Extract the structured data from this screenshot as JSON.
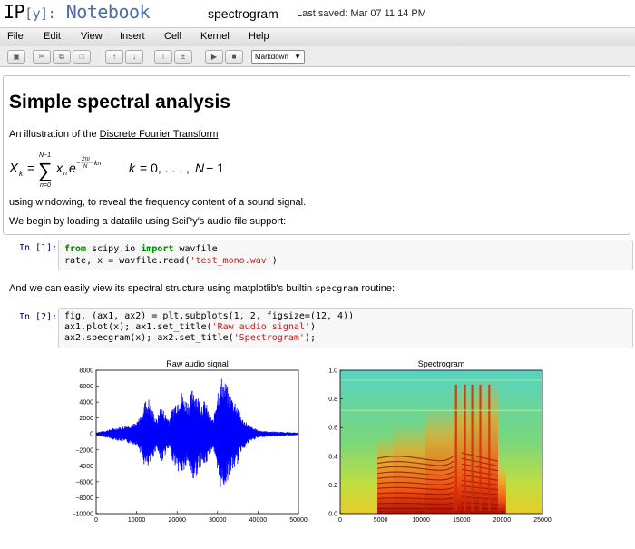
{
  "header": {
    "logo_ip": "IP",
    "logo_y": "[y]:",
    "logo_notebook": "Notebook",
    "notebook_name": "spectrogram",
    "last_saved": "Last saved: Mar 07 11:14 PM"
  },
  "menu": {
    "items": [
      "File",
      "Edit",
      "View",
      "Insert",
      "Cell",
      "Kernel",
      "Help"
    ]
  },
  "toolbar": {
    "buttons": [
      "save-icon",
      "cut-icon",
      "copy-icon",
      "paste-icon",
      "move-up-icon",
      "move-down-icon",
      "insert-above-icon",
      "insert-below-icon",
      "run-icon",
      "stop-icon"
    ],
    "cell_type": "Markdown"
  },
  "markdown": {
    "title": "Simple spectral analysis",
    "intro_prefix": "An illustration of the ",
    "intro_link": "Discrete Fourier Transform",
    "formula": "X_k = sum_{n=0}^{N-1} x_n e^{-2 pi i k n / N}, k = 0, ..., N-1",
    "para2": "using windowing, to reveal the frequency content of a sound signal.",
    "para3": "We begin by loading a datafile using SciPy's audio file support:"
  },
  "cell1": {
    "prompt": "In [1]:",
    "line1_kw1": "from",
    "line1_mod": " scipy.io ",
    "line1_kw2": "import",
    "line1_name": " wavfile",
    "line2_pre": "rate, x = wavfile.read(",
    "line2_str": "'test_mono.wav'",
    "line2_post": ")"
  },
  "between": {
    "prefix": "And we can easily view its spectral structure using matplotlib's builtin ",
    "code": "specgram",
    "suffix": " routine:"
  },
  "cell2": {
    "prompt": "In [2]:",
    "line1": "fig, (ax1, ax2) = plt.subplots(1, 2, figsize=(12, 4))",
    "line2_pre": "ax1.plot(x); ax1.set_title(",
    "line2_str": "'Raw audio signal'",
    "line2_post": ")",
    "line3_pre": "ax2.specgram(x); ax2.set_title(",
    "line3_str": "'Spectrogram'",
    "line3_post": ");"
  },
  "chart_data": [
    {
      "type": "line",
      "title": "Raw audio signal",
      "xlim": [
        0,
        50000
      ],
      "ylim": [
        -10000,
        8000
      ],
      "xticks": [
        "0",
        "10000",
        "20000",
        "30000",
        "40000",
        "50000"
      ],
      "yticks": [
        "8000",
        "6000",
        "4000",
        "2000",
        "0",
        "−2000",
        "−4000",
        "−6000",
        "−8000",
        "−10000"
      ],
      "series_color": "#0000ff",
      "envelope": {
        "x": [
          0,
          2000,
          4000,
          6000,
          8000,
          10000,
          11000,
          12000,
          13000,
          14000,
          15000,
          16000,
          17000,
          18000,
          19000,
          20000,
          21000,
          22000,
          23000,
          24000,
          25000,
          26000,
          27000,
          28000,
          29000,
          30000,
          31000,
          32000,
          33000,
          34000,
          35000,
          36000,
          37000,
          38000,
          40000,
          42000,
          44000,
          46000,
          48000,
          50000
        ],
        "amp": [
          200,
          400,
          700,
          900,
          1200,
          1400,
          2500,
          4200,
          4500,
          3000,
          1800,
          3800,
          2700,
          2000,
          3500,
          4500,
          5500,
          4500,
          4300,
          6200,
          5000,
          4000,
          4300,
          2500,
          1800,
          5800,
          7200,
          6500,
          5200,
          4500,
          3800,
          2000,
          1600,
          1000,
          500,
          350,
          300,
          250,
          200,
          150
        ]
      }
    },
    {
      "type": "heatmap",
      "title": "Spectrogram",
      "xlim": [
        0,
        25000
      ],
      "ylim": [
        0,
        1.0
      ],
      "xticks": [
        "0",
        "5000",
        "10000",
        "15000",
        "20000",
        "25000"
      ],
      "yticks": [
        "1.0",
        "0.8",
        "0.6",
        "0.4",
        "0.2",
        "0.0"
      ],
      "colormap": "jet"
    }
  ]
}
